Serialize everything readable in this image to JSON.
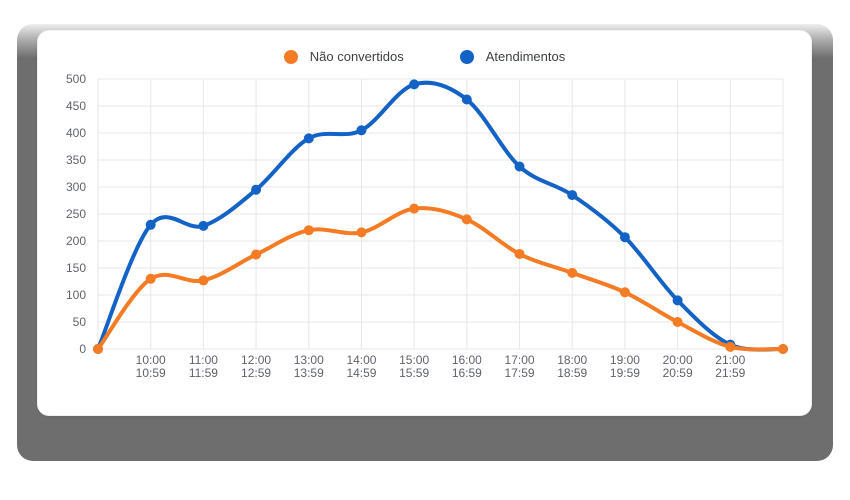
{
  "legend": {
    "items": [
      {
        "label": "Não convertidos",
        "color": "#F57C24"
      },
      {
        "label": "Atendimentos",
        "color": "#1362C6"
      }
    ]
  },
  "chart_data": {
    "type": "line",
    "title": "",
    "xlabel": "",
    "ylabel": "",
    "ylim": [
      0,
      500
    ],
    "ytick_step": 50,
    "y_tick_labels": [
      "0",
      "50",
      "100",
      "150",
      "200",
      "250",
      "300",
      "350",
      "400",
      "450",
      "500"
    ],
    "grid": true,
    "legend_position": "top",
    "categories": [
      "",
      "10:00\n10:59",
      "11:00\n11:59",
      "12:00\n12:59",
      "13:00\n13:59",
      "14:00\n14:59",
      "15:00\n15:59",
      "16:00\n16:59",
      "17:00\n17:59",
      "18:00\n18:59",
      "19:00\n19:59",
      "20:00\n20:59",
      "21:00\n21:59",
      ""
    ],
    "series": [
      {
        "name": "Não convertidos",
        "color": "#F57C24",
        "values": [
          0,
          130,
          127,
          175,
          220,
          216,
          260,
          240,
          176,
          141,
          105,
          50,
          4,
          0
        ]
      },
      {
        "name": "Atendimentos",
        "color": "#1362C6",
        "values": [
          0,
          230,
          228,
          295,
          390,
          405,
          490,
          462,
          338,
          285,
          207,
          90,
          8,
          0
        ]
      }
    ],
    "style": {
      "grid_color": "#e7e7e7",
      "axis_text_color": "#5f6368",
      "line_width": 4,
      "point_radius": 5
    }
  }
}
